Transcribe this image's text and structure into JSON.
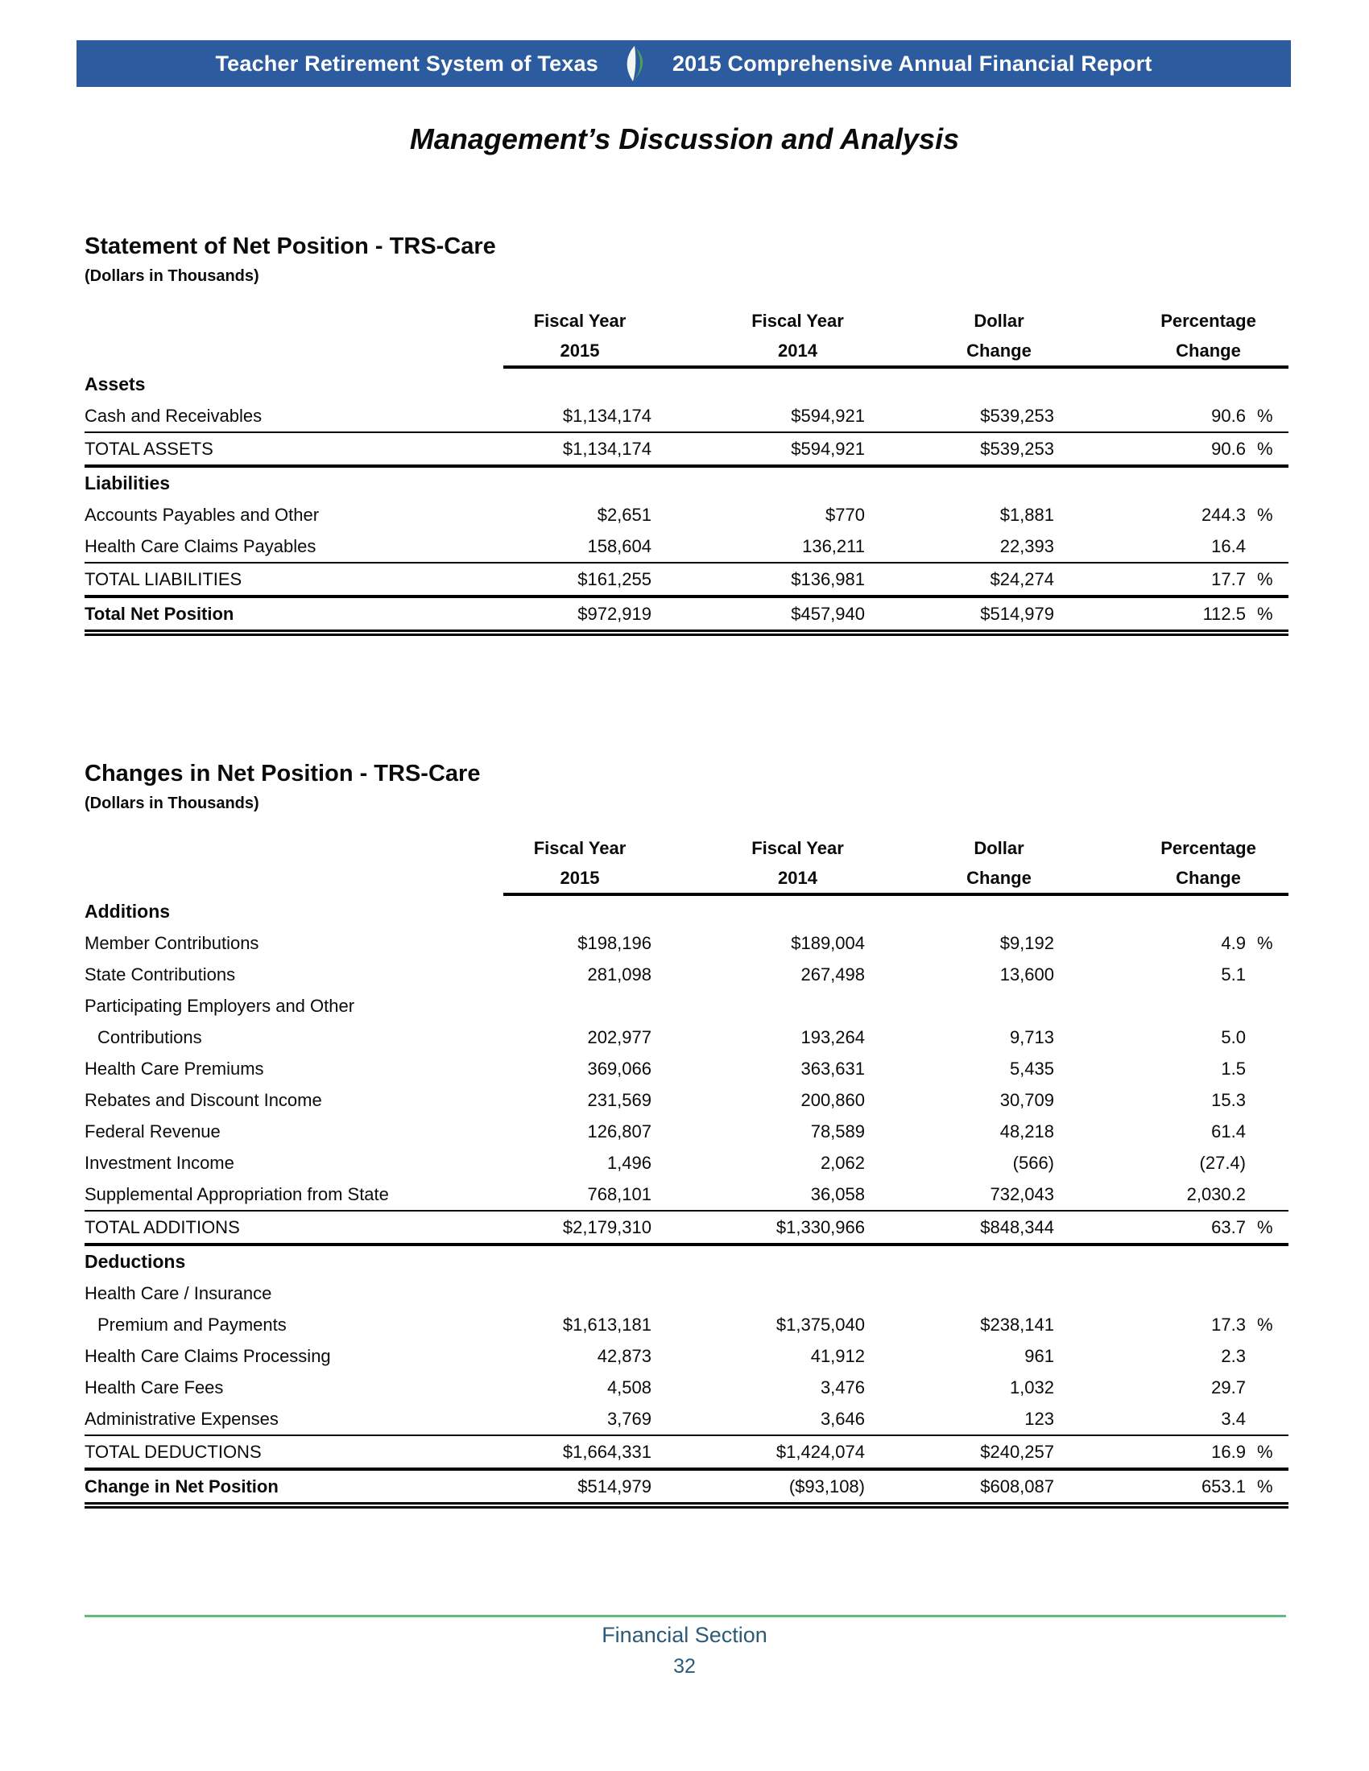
{
  "banner": {
    "org": "Teacher Retirement System of Texas",
    "report": "2015 Comprehensive Annual Financial Report",
    "bar_color": "#2D5BA0",
    "leaf_colors": {
      "light": "#F2F7F0",
      "green": "#4E9D5B"
    }
  },
  "page_title": "Management’s Discussion and Analysis",
  "tables": [
    {
      "title": "Statement of Net Position - TRS-Care",
      "subtitle": "(Dollars in Thousands)",
      "columns": [
        {
          "line1": "Fiscal Year",
          "line2": "2015"
        },
        {
          "line1": "Fiscal Year",
          "line2": "2014"
        },
        {
          "line1": "Dollar",
          "line2": "Change"
        },
        {
          "line1": "Percentage",
          "line2": "Change"
        }
      ],
      "rows": [
        {
          "label": "Assets",
          "type": "section"
        },
        {
          "label": "Cash and Receivables",
          "v2015": "$1,134,174",
          "v2014": "$594,921",
          "dollar": "$539,253",
          "pct": "90.6",
          "sign": "%",
          "border": "thin"
        },
        {
          "label": "TOTAL ASSETS",
          "v2015": "$1,134,174",
          "v2014": "$594,921",
          "dollar": "$539,253",
          "pct": "90.6",
          "sign": "%",
          "border": "thick"
        },
        {
          "label": "Liabilities",
          "type": "section"
        },
        {
          "label": "Accounts Payables and Other",
          "v2015": "$2,651",
          "v2014": "$770",
          "dollar": "$1,881",
          "pct": "244.3",
          "sign": "%"
        },
        {
          "label": "Health Care Claims Payables",
          "v2015": "158,604",
          "v2014": "136,211",
          "dollar": "22,393",
          "pct": "16.4",
          "border": "thin"
        },
        {
          "label": "TOTAL LIABILITIES",
          "v2015": "$161,255",
          "v2014": "$136,981",
          "dollar": "$24,274",
          "pct": "17.7",
          "sign": "%",
          "border": "thick"
        },
        {
          "label": "Total Net Position",
          "type": "grandtotal",
          "v2015": "$972,919",
          "v2014": "$457,940",
          "dollar": "$514,979",
          "pct": "112.5",
          "sign": "%",
          "border": "double"
        }
      ]
    },
    {
      "title": "Changes in Net Position - TRS-Care",
      "subtitle": "(Dollars in Thousands)",
      "columns": [
        {
          "line1": "Fiscal Year",
          "line2": "2015"
        },
        {
          "line1": "Fiscal Year",
          "line2": "2014"
        },
        {
          "line1": "Dollar",
          "line2": "Change"
        },
        {
          "line1": "Percentage",
          "line2": "Change"
        }
      ],
      "rows": [
        {
          "label": "Additions",
          "type": "section"
        },
        {
          "label": "Member Contributions",
          "v2015": "$198,196",
          "v2014": "$189,004",
          "dollar": "$9,192",
          "pct": "4.9",
          "sign": "%"
        },
        {
          "label": "State Contributions",
          "v2015": "281,098",
          "v2014": "267,498",
          "dollar": "13,600",
          "pct": "5.1"
        },
        {
          "label": "Participating Employers and Other"
        },
        {
          "label": "Contributions",
          "indent": true,
          "v2015": "202,977",
          "v2014": "193,264",
          "dollar": "9,713",
          "pct": "5.0"
        },
        {
          "label": "Health Care Premiums",
          "v2015": "369,066",
          "v2014": "363,631",
          "dollar": "5,435",
          "pct": "1.5"
        },
        {
          "label": "Rebates and Discount Income",
          "v2015": "231,569",
          "v2014": "200,860",
          "dollar": "30,709",
          "pct": "15.3"
        },
        {
          "label": "Federal Revenue",
          "v2015": "126,807",
          "v2014": "78,589",
          "dollar": "48,218",
          "pct": "61.4"
        },
        {
          "label": "Investment Income",
          "v2015": "1,496",
          "v2014": "2,062",
          "dollar": "(566)",
          "pct": "(27.4)"
        },
        {
          "label": "Supplemental Appropriation from State",
          "v2015": "768,101",
          "v2014": "36,058",
          "dollar": "732,043",
          "pct": "2,030.2",
          "border": "thin"
        },
        {
          "label": "TOTAL ADDITIONS",
          "v2015": "$2,179,310",
          "v2014": "$1,330,966",
          "dollar": "$848,344",
          "pct": "63.7",
          "sign": "%",
          "border": "thick"
        },
        {
          "label": "Deductions",
          "type": "section"
        },
        {
          "label": "Health Care / Insurance"
        },
        {
          "label": "Premium and Payments",
          "indent": true,
          "v2015": "$1,613,181",
          "v2014": "$1,375,040",
          "dollar": "$238,141",
          "pct": "17.3",
          "sign": "%"
        },
        {
          "label": "Health Care Claims Processing",
          "v2015": "42,873",
          "v2014": "41,912",
          "dollar": "961",
          "pct": "2.3"
        },
        {
          "label": "Health Care Fees",
          "v2015": "4,508",
          "v2014": "3,476",
          "dollar": "1,032",
          "pct": "29.7"
        },
        {
          "label": "Administrative Expenses",
          "v2015": "3,769",
          "v2014": "3,646",
          "dollar": "123",
          "pct": "3.4",
          "border": "thin"
        },
        {
          "label": "TOTAL DEDUCTIONS",
          "v2015": "$1,664,331",
          "v2014": "$1,424,074",
          "dollar": "$240,257",
          "pct": "16.9",
          "sign": "%",
          "border": "thick"
        },
        {
          "label": "Change in Net Position",
          "type": "grandtotal",
          "v2015": "$514,979",
          "v2014": "($93,108)",
          "dollar": "$608,087",
          "pct": "653.1",
          "sign": "%",
          "border": "double"
        }
      ]
    }
  ],
  "footer": {
    "section": "Financial Section",
    "page_number": "32",
    "line_color": "#60BA82",
    "text_color": "#2C5B79"
  }
}
